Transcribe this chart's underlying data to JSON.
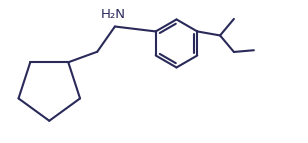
{
  "line_color": "#2a2a5a",
  "background_color": "#ffffff",
  "nh2_label": "H₂N",
  "nh2_fontsize": 9.5,
  "line_width": 1.5,
  "figsize": [
    3.08,
    1.43
  ],
  "dpi": 100
}
